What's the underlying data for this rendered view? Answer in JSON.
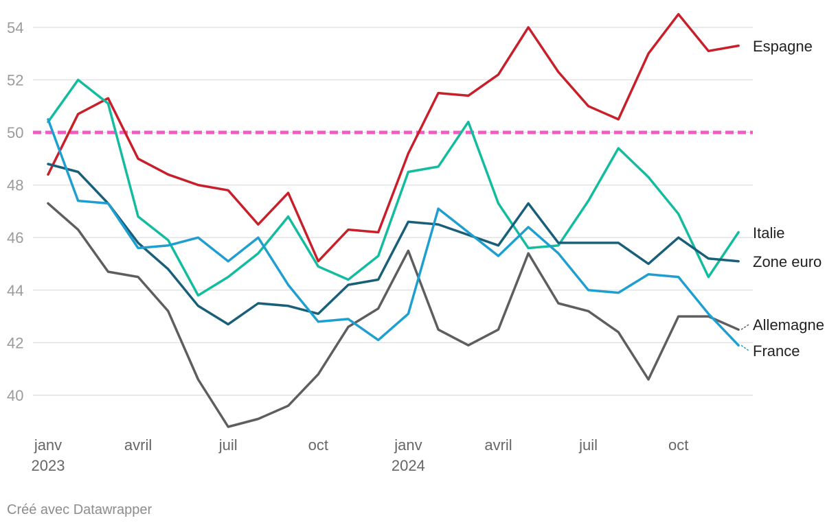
{
  "chart_data": {
    "type": "line",
    "x": [
      "2023-01",
      "2023-02",
      "2023-03",
      "2023-04",
      "2023-05",
      "2023-06",
      "2023-07",
      "2023-08",
      "2023-09",
      "2023-10",
      "2023-11",
      "2023-12",
      "2024-01",
      "2024-02",
      "2024-03",
      "2024-04",
      "2024-05",
      "2024-06",
      "2024-07",
      "2024-08",
      "2024-09",
      "2024-10",
      "2024-11",
      "2024-12"
    ],
    "ylim": [
      39,
      55
    ],
    "yticks": [
      "40",
      "42",
      "44",
      "46",
      "48",
      "50",
      "52",
      "54"
    ],
    "xticks": [
      {
        "month": "janv",
        "year": "2023",
        "index": 0
      },
      {
        "month": "avril",
        "year": "",
        "index": 3
      },
      {
        "month": "juil",
        "year": "",
        "index": 6
      },
      {
        "month": "oct",
        "year": "",
        "index": 9
      },
      {
        "month": "janv",
        "year": "2024",
        "index": 12
      },
      {
        "month": "avril",
        "year": "",
        "index": 15
      },
      {
        "month": "juil",
        "year": "",
        "index": 18
      },
      {
        "month": "oct",
        "year": "",
        "index": 21
      }
    ],
    "reference_line": {
      "value": 50,
      "color": "#f25cc2",
      "style": "dashed"
    },
    "grid": true,
    "series": [
      {
        "name": "Espagne",
        "color": "#c8202b",
        "values": [
          48.4,
          50.7,
          51.3,
          49.0,
          48.4,
          48.0,
          47.8,
          46.5,
          47.7,
          45.1,
          46.3,
          46.2,
          49.2,
          51.5,
          51.4,
          52.2,
          54.0,
          52.3,
          51.0,
          50.5,
          53.0,
          54.5,
          53.1,
          53.3
        ]
      },
      {
        "name": "Italie",
        "color": "#13bc9f",
        "values": [
          50.4,
          52.0,
          51.1,
          46.8,
          45.9,
          43.8,
          44.5,
          45.4,
          46.8,
          44.9,
          44.4,
          45.3,
          48.5,
          48.7,
          50.4,
          47.3,
          45.6,
          45.7,
          47.4,
          49.4,
          48.3,
          46.9,
          44.5,
          46.2
        ]
      },
      {
        "name": "Zone euro",
        "color": "#1a5f7a",
        "values": [
          48.8,
          48.5,
          47.3,
          45.8,
          44.8,
          43.4,
          42.7,
          43.5,
          43.4,
          43.1,
          44.2,
          44.4,
          46.6,
          46.5,
          46.1,
          45.7,
          47.3,
          45.8,
          45.8,
          45.8,
          45.0,
          46.0,
          45.2,
          45.1
        ]
      },
      {
        "name": "Allemagne",
        "color": "#5e5e5e",
        "values": [
          47.3,
          46.3,
          44.7,
          44.5,
          43.2,
          40.6,
          38.8,
          39.1,
          39.6,
          40.8,
          42.6,
          43.3,
          45.5,
          42.5,
          41.9,
          42.5,
          45.4,
          43.5,
          43.2,
          42.4,
          40.6,
          43.0,
          43.0,
          42.5
        ]
      },
      {
        "name": "France",
        "color": "#1f9fd0",
        "values": [
          50.5,
          47.4,
          47.3,
          45.6,
          45.7,
          46.0,
          45.1,
          46.0,
          44.2,
          42.8,
          42.9,
          42.1,
          43.1,
          47.1,
          46.2,
          45.3,
          46.4,
          45.4,
          44.0,
          43.9,
          44.6,
          44.5,
          43.1,
          41.9
        ]
      }
    ]
  },
  "footer": "Créé avec Datawrapper"
}
